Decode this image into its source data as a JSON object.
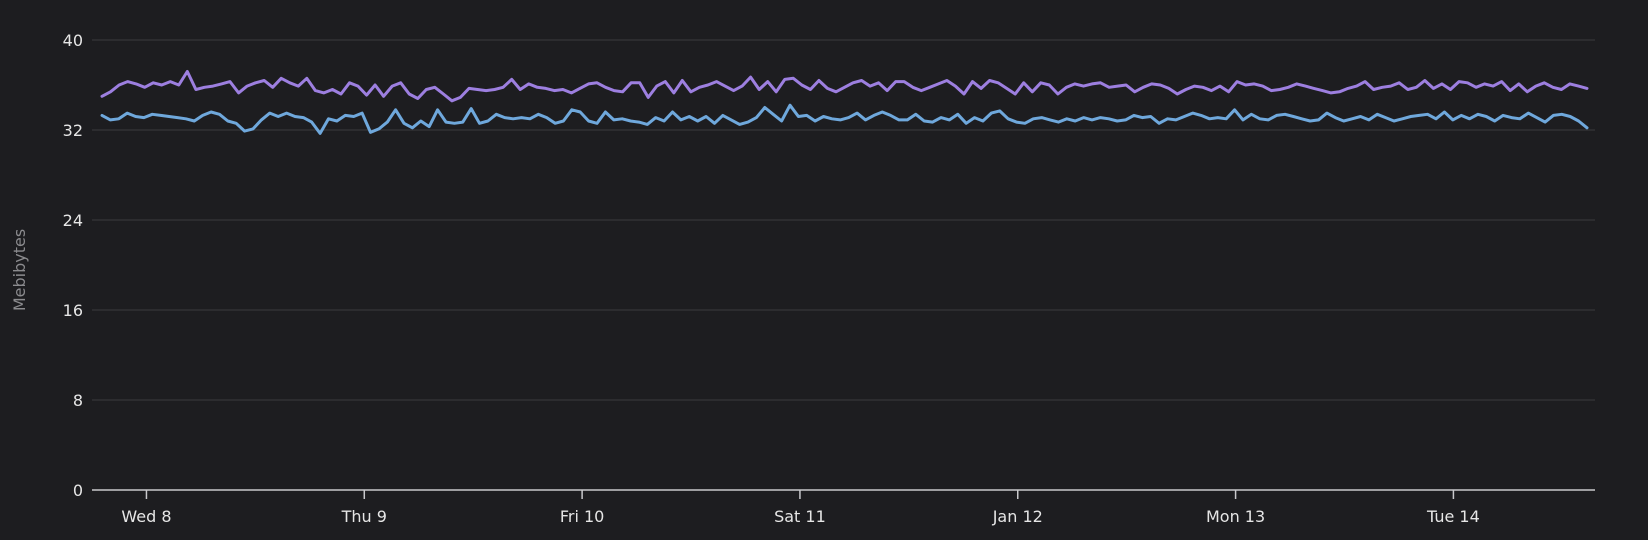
{
  "chart_data": {
    "type": "line",
    "title": "",
    "xlabel": "",
    "ylabel": "Mebibytes",
    "ylim": [
      0,
      40
    ],
    "yticks": [
      0,
      8,
      16,
      24,
      32,
      40
    ],
    "grid": true,
    "xticks": [
      "Wed 8",
      "Thu 9",
      "Fri 10",
      "Sat 11",
      "Jan 12",
      "Mon 13",
      "Tue 14"
    ],
    "x_range_days": [
      -0.25,
      6.65
    ],
    "series": [
      {
        "color": "#9d7fe0",
        "values": [
          35.0,
          35.4,
          36.0,
          36.3,
          36.1,
          35.8,
          36.2,
          36.0,
          36.3,
          36.0,
          37.2,
          35.6,
          35.8,
          35.9,
          36.1,
          36.3,
          35.3,
          35.9,
          36.2,
          36.4,
          35.8,
          36.6,
          36.2,
          35.9,
          36.6,
          35.5,
          35.3,
          35.6,
          35.2,
          36.2,
          35.9,
          35.1,
          36.0,
          35.0,
          35.9,
          36.2,
          35.2,
          34.8,
          35.6,
          35.8,
          35.2,
          34.6,
          34.9,
          35.7,
          35.6,
          35.5,
          35.6,
          35.8,
          36.5,
          35.6,
          36.1,
          35.8,
          35.7,
          35.5,
          35.6,
          35.3,
          35.7,
          36.1,
          36.2,
          35.8,
          35.5,
          35.4,
          36.2,
          36.2,
          34.9,
          35.9,
          36.3,
          35.3,
          36.4,
          35.4,
          35.8,
          36.0,
          36.3,
          35.9,
          35.5,
          35.9,
          36.7,
          35.6,
          36.3,
          35.4,
          36.5,
          36.6,
          36.0,
          35.6,
          36.4,
          35.7,
          35.4,
          35.8,
          36.2,
          36.4,
          35.9,
          36.2,
          35.5,
          36.3,
          36.3,
          35.8,
          35.5,
          35.8,
          36.1,
          36.4,
          35.9,
          35.2,
          36.3,
          35.7,
          36.4,
          36.2,
          35.7,
          35.2,
          36.2,
          35.4,
          36.2,
          36.0,
          35.2,
          35.8,
          36.1,
          35.9,
          36.1,
          36.2,
          35.8,
          35.9,
          36.0,
          35.4,
          35.8,
          36.1,
          36.0,
          35.7,
          35.2,
          35.6,
          35.9,
          35.8,
          35.5,
          35.9,
          35.4,
          36.3,
          36.0,
          36.1,
          35.9,
          35.5,
          35.6,
          35.8,
          36.1,
          35.9,
          35.7,
          35.5,
          35.3,
          35.4,
          35.7,
          35.9,
          36.3,
          35.6,
          35.8,
          35.9,
          36.2,
          35.6,
          35.8,
          36.4,
          35.7,
          36.1,
          35.6,
          36.3,
          36.2,
          35.8,
          36.1,
          35.9,
          36.3,
          35.5,
          36.1,
          35.4,
          35.9,
          36.2,
          35.8,
          35.6,
          36.1,
          35.9,
          35.7
        ]
      },
      {
        "color": "#6fa8dc",
        "values": [
          33.3,
          32.9,
          33.0,
          33.5,
          33.2,
          33.1,
          33.4,
          33.3,
          33.2,
          33.1,
          33.0,
          32.8,
          33.3,
          33.6,
          33.4,
          32.8,
          32.6,
          31.9,
          32.1,
          32.9,
          33.5,
          33.2,
          33.5,
          33.2,
          33.1,
          32.7,
          31.7,
          33.0,
          32.8,
          33.3,
          33.2,
          33.5,
          31.8,
          32.1,
          32.7,
          33.8,
          32.6,
          32.2,
          32.8,
          32.3,
          33.8,
          32.7,
          32.6,
          32.7,
          33.9,
          32.6,
          32.8,
          33.4,
          33.1,
          33.0,
          33.1,
          33.0,
          33.4,
          33.1,
          32.6,
          32.8,
          33.8,
          33.6,
          32.8,
          32.6,
          33.6,
          32.9,
          33.0,
          32.8,
          32.7,
          32.5,
          33.1,
          32.8,
          33.6,
          32.9,
          33.2,
          32.8,
          33.2,
          32.6,
          33.3,
          32.9,
          32.5,
          32.7,
          33.1,
          34.0,
          33.4,
          32.8,
          34.2,
          33.2,
          33.3,
          32.8,
          33.2,
          33.0,
          32.9,
          33.1,
          33.5,
          32.9,
          33.3,
          33.6,
          33.3,
          32.9,
          32.9,
          33.4,
          32.8,
          32.7,
          33.1,
          32.9,
          33.4,
          32.6,
          33.1,
          32.8,
          33.5,
          33.7,
          33.0,
          32.7,
          32.6,
          33.0,
          33.1,
          32.9,
          32.7,
          33.0,
          32.8,
          33.1,
          32.9,
          33.1,
          33.0,
          32.8,
          32.9,
          33.3,
          33.1,
          33.2,
          32.6,
          33.0,
          32.9,
          33.2,
          33.5,
          33.3,
          33.0,
          33.1,
          33.0,
          33.8,
          32.9,
          33.4,
          33.0,
          32.9,
          33.3,
          33.4,
          33.2,
          33.0,
          32.8,
          32.9,
          33.5,
          33.1,
          32.8,
          33.0,
          33.2,
          32.9,
          33.4,
          33.1,
          32.8,
          33.0,
          33.2,
          33.3,
          33.4,
          33.0,
          33.6,
          32.9,
          33.3,
          33.0,
          33.4,
          33.2,
          32.8,
          33.3,
          33.1,
          33.0,
          33.5,
          33.1,
          32.7,
          33.3,
          33.4,
          33.2,
          32.8,
          32.2
        ]
      }
    ]
  }
}
